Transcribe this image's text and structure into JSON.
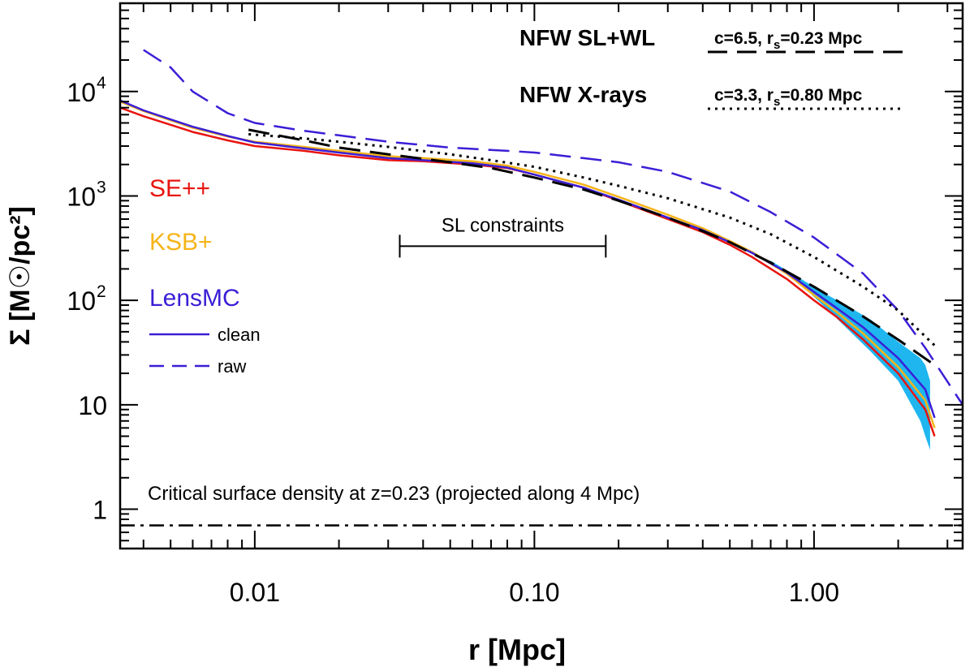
{
  "chart_data": {
    "type": "line",
    "title": "",
    "xlabel": "r  [Mpc]",
    "ylabel": "Σ [M☉/pc²]",
    "x_scale": "log",
    "y_scale": "log",
    "xlim": [
      0.0033,
      3.4
    ],
    "ylim": [
      0.42,
      70000
    ],
    "grid": false,
    "x_ticks": [
      {
        "value": 0.01,
        "label": "0.01"
      },
      {
        "value": 0.1,
        "label": "0.10"
      },
      {
        "value": 1.0,
        "label": "1.00"
      }
    ],
    "y_ticks": [
      {
        "value": 1,
        "label": "1"
      },
      {
        "value": 10,
        "label": "10"
      },
      {
        "value": 100,
        "label": "10",
        "sup": "2"
      },
      {
        "value": 1000,
        "label": "10",
        "sup": "3"
      },
      {
        "value": 10000,
        "label": "10",
        "sup": "4"
      }
    ],
    "legend_placement": "left",
    "legend": [
      {
        "label": "SE++",
        "color": "#e8140f"
      },
      {
        "label": "KSB+",
        "color": "#f5b418"
      },
      {
        "label": "LensMC",
        "color": "#3a1fd6"
      }
    ],
    "line_style_legend": [
      {
        "label": "clean",
        "style": "solid",
        "color": "#3a1fd6"
      },
      {
        "label": "raw",
        "style": "dashed",
        "color": "#3a1fd6"
      }
    ],
    "model_legend": [
      {
        "label": "NFW SL+WL",
        "params_c": "c=6.5, r",
        "params_sub": "s",
        "params_rest": "=0.23 Mpc",
        "style": "dashed"
      },
      {
        "label": "NFW X-rays",
        "params_c": "c=3.3, r",
        "params_sub": "s",
        "params_rest": "=0.80 Mpc",
        "style": "dotted"
      }
    ],
    "annotations": {
      "sl_constraints": {
        "label": "SL constraints",
        "x_range": [
          0.033,
          0.18
        ],
        "y": 330
      },
      "critical_density": {
        "label": "Critical surface density at z=0.23 (projected along 4 Mpc)",
        "y": 0.7
      }
    },
    "series": [
      {
        "name": "SE++",
        "color": "#e8140f",
        "style": "solid",
        "x": [
          0.0033,
          0.004,
          0.005,
          0.006,
          0.008,
          0.01,
          0.015,
          0.02,
          0.03,
          0.04,
          0.06,
          0.08,
          0.1,
          0.15,
          0.2,
          0.3,
          0.4,
          0.5,
          0.6,
          0.8,
          1.0,
          1.2,
          1.5,
          2.0,
          2.5,
          2.7
        ],
        "y": [
          7000,
          5800,
          4800,
          4100,
          3400,
          3000,
          2700,
          2450,
          2200,
          2150,
          2000,
          1850,
          1600,
          1200,
          900,
          600,
          450,
          340,
          260,
          160,
          100,
          70,
          42,
          20,
          9,
          5
        ]
      },
      {
        "name": "KSB+",
        "color": "#f5b418",
        "style": "solid",
        "x": [
          0.0033,
          0.004,
          0.005,
          0.006,
          0.008,
          0.01,
          0.015,
          0.02,
          0.03,
          0.04,
          0.06,
          0.08,
          0.1,
          0.15,
          0.2,
          0.3,
          0.4,
          0.5,
          0.6,
          0.8,
          1.0,
          1.2,
          1.5,
          2.0,
          2.5,
          2.7
        ],
        "y": [
          8000,
          6500,
          5300,
          4500,
          3700,
          3300,
          2950,
          2700,
          2400,
          2300,
          2150,
          1950,
          1700,
          1280,
          980,
          660,
          490,
          370,
          290,
          180,
          112,
          78,
          48,
          23,
          11,
          6
        ]
      },
      {
        "name": "LensMC",
        "color": "#3a1fd6",
        "style": "solid",
        "x": [
          0.0033,
          0.004,
          0.005,
          0.006,
          0.008,
          0.01,
          0.015,
          0.02,
          0.03,
          0.04,
          0.06,
          0.08,
          0.1,
          0.15,
          0.2,
          0.3,
          0.4,
          0.5,
          0.6,
          0.8,
          1.0,
          1.2,
          1.5,
          2.0,
          2.5,
          2.7
        ],
        "y": [
          8200,
          6600,
          5400,
          4600,
          3750,
          3250,
          2850,
          2600,
          2300,
          2200,
          2050,
          1870,
          1600,
          1200,
          920,
          620,
          470,
          360,
          285,
          185,
          120,
          85,
          55,
          28,
          14,
          7.5
        ]
      },
      {
        "name": "LensMC raw",
        "color": "#3a1fd6",
        "style": "dashed",
        "x": [
          0.004,
          0.005,
          0.006,
          0.008,
          0.01,
          0.015,
          0.02,
          0.03,
          0.05,
          0.08,
          0.1,
          0.15,
          0.2,
          0.3,
          0.5,
          0.7,
          1.0,
          1.5,
          2.0,
          2.5,
          3.4
        ],
        "y": [
          25000,
          17000,
          10000,
          6200,
          5000,
          4200,
          3800,
          3300,
          2900,
          2700,
          2600,
          2300,
          2100,
          1700,
          1100,
          700,
          400,
          180,
          80,
          35,
          10
        ]
      },
      {
        "name": "NFW SL+WL",
        "color": "#000000",
        "style": "dashed",
        "x": [
          0.0095,
          0.015,
          0.02,
          0.03,
          0.05,
          0.07,
          0.1,
          0.15,
          0.2,
          0.3,
          0.4,
          0.5,
          0.7,
          1.0,
          1.5,
          2.0,
          2.7
        ],
        "y": [
          4300,
          3400,
          2900,
          2500,
          2100,
          1850,
          1500,
          1150,
          900,
          620,
          460,
          360,
          230,
          135,
          70,
          42,
          24
        ]
      },
      {
        "name": "NFW X-rays",
        "color": "#000000",
        "style": "dotted",
        "x": [
          0.0095,
          0.015,
          0.02,
          0.03,
          0.05,
          0.07,
          0.1,
          0.15,
          0.2,
          0.3,
          0.5,
          0.7,
          1.0,
          1.5,
          2.0,
          2.7
        ],
        "y": [
          3900,
          3550,
          3300,
          2950,
          2500,
          2200,
          1900,
          1500,
          1250,
          950,
          620,
          430,
          260,
          135,
          80,
          37
        ]
      }
    ],
    "error_band": {
      "color": "#1fb6f0",
      "x": [
        0.7,
        0.9,
        1.1,
        1.3,
        1.6,
        2.0,
        2.4,
        2.5,
        2.6
      ],
      "y_low": [
        230,
        140,
        85,
        55,
        32,
        17,
        7,
        5,
        3.7
      ],
      "y_high": [
        240,
        160,
        115,
        90,
        65,
        40,
        28,
        24,
        17
      ]
    }
  }
}
